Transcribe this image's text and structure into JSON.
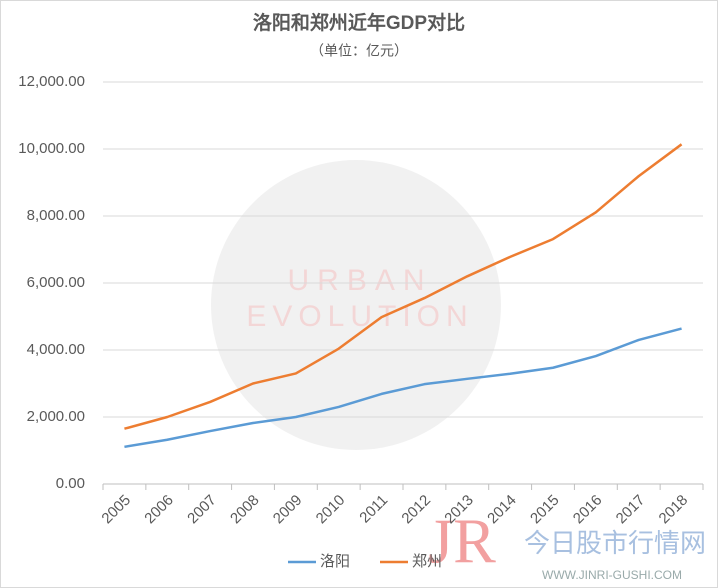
{
  "chart_data": {
    "type": "line",
    "title": "洛阳和郑州近年GDP对比",
    "subtitle": "（单位：亿元）",
    "categories": [
      "2005",
      "2006",
      "2007",
      "2008",
      "2009",
      "2010",
      "2011",
      "2012",
      "2013",
      "2014",
      "2015",
      "2016",
      "2017",
      "2018"
    ],
    "series": [
      {
        "name": "洛阳",
        "color": "#5b9bd5",
        "values": [
          1110,
          1320,
          1580,
          1820,
          2000,
          2300,
          2690,
          2980,
          3140,
          3290,
          3470,
          3820,
          4300,
          4640
        ]
      },
      {
        "name": "郑州",
        "color": "#ed7d31",
        "values": [
          1650,
          2000,
          2450,
          3000,
          3300,
          4040,
          4980,
          5550,
          6200,
          6780,
          7310,
          8110,
          9190,
          10140
        ]
      }
    ],
    "ylim": [
      0,
      12000
    ],
    "yticks": [
      {
        "value": 0,
        "label": "0.00"
      },
      {
        "value": 2000,
        "label": "2,000.00"
      },
      {
        "value": 4000,
        "label": "4,000.00"
      },
      {
        "value": 6000,
        "label": "6,000.00"
      },
      {
        "value": 8000,
        "label": "8,000.00"
      },
      {
        "value": 10000,
        "label": "10,000.00"
      },
      {
        "value": 12000,
        "label": "12,000.00"
      }
    ],
    "grid": true,
    "legend": "bottom"
  },
  "watermarks": [
    "URBAN",
    "EVOLUTION",
    "JR",
    "今日股市行情网",
    "WWW.JINRI-GUSHI.COM"
  ]
}
